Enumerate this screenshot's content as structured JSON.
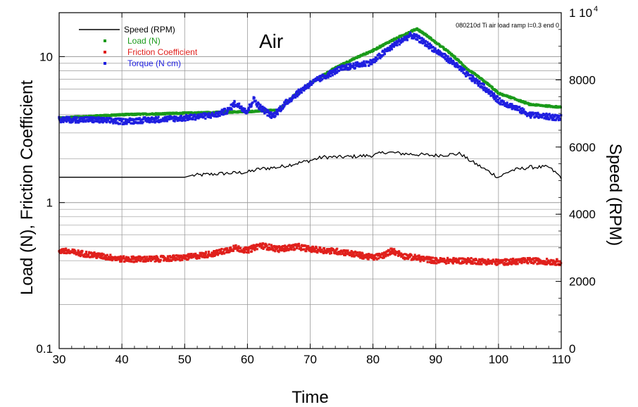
{
  "chart_data": {
    "type": "line",
    "title": "Air",
    "annotation": "080210d Ti air load ramp l=0.3 end 0",
    "xlabel": "Time",
    "ylabel_left": "Load (N), Friction Coefficient",
    "ylabel_right": "Speed (RPM)",
    "xlim": [
      30,
      110
    ],
    "ylim_left": [
      0.1,
      20
    ],
    "ylim_right": [
      0,
      10000
    ],
    "left_scale": "log",
    "grid": true,
    "legend_position": "top-left",
    "x_ticks": [
      "30",
      "40",
      "50",
      "60",
      "70",
      "80",
      "90",
      "100",
      "110"
    ],
    "y_left_ticks": [
      {
        "value": 0.1,
        "label": "0.1"
      },
      {
        "value": 1,
        "label": "1"
      },
      {
        "value": 10,
        "label": "10"
      }
    ],
    "y_right_ticks": [
      {
        "value": 0,
        "label": "0"
      },
      {
        "value": 2000,
        "label": "2000"
      },
      {
        "value": 4000,
        "label": "4000"
      },
      {
        "value": 6000,
        "label": "6000"
      },
      {
        "value": 8000,
        "label": "8000"
      }
    ],
    "y_right_top_label": {
      "mantissa": "1 10",
      "exponent": "4"
    },
    "series": [
      {
        "name": "Speed (RPM)",
        "axis": "right",
        "color": "#000000",
        "style": "line",
        "x": [
          30,
          35,
          40,
          45,
          50,
          51,
          55,
          60,
          62,
          65,
          70,
          72,
          75,
          80,
          82,
          85,
          90,
          94,
          95,
          100,
          102,
          105,
          108,
          110
        ],
        "y": [
          5100,
          5100,
          5100,
          5100,
          5100,
          5150,
          5200,
          5250,
          5350,
          5400,
          5600,
          5700,
          5700,
          5750,
          5850,
          5800,
          5750,
          5800,
          5650,
          5100,
          5300,
          5400,
          5400,
          5100
        ]
      },
      {
        "name": "Load (N)",
        "axis": "left",
        "color": "#1a9a1a",
        "style": "points",
        "x": [
          30,
          40,
          50,
          60,
          65,
          70,
          75,
          80,
          84,
          87,
          90,
          95,
          100,
          105,
          110
        ],
        "y": [
          3.8,
          4.0,
          4.1,
          4.2,
          4.3,
          6.5,
          8.8,
          11.0,
          13.5,
          15.5,
          12.5,
          8.2,
          5.6,
          4.7,
          4.5
        ]
      },
      {
        "name": "Friction Coefficient",
        "axis": "left",
        "color": "#e0201c",
        "style": "points",
        "x": [
          30,
          35,
          40,
          45,
          50,
          55,
          58,
          60,
          62,
          65,
          68,
          70,
          75,
          80,
          82,
          83,
          85,
          90,
          95,
          100,
          105,
          110
        ],
        "y": [
          0.47,
          0.44,
          0.41,
          0.41,
          0.42,
          0.45,
          0.49,
          0.47,
          0.51,
          0.48,
          0.5,
          0.48,
          0.46,
          0.42,
          0.44,
          0.47,
          0.43,
          0.4,
          0.4,
          0.39,
          0.4,
          0.39
        ]
      },
      {
        "name": "Torque (N cm)",
        "axis": "left",
        "color": "#1f1fe0",
        "style": "points",
        "x": [
          30,
          35,
          40,
          45,
          50,
          55,
          57,
          58,
          60,
          61,
          62,
          64,
          65,
          70,
          75,
          80,
          84,
          86,
          87,
          90,
          95,
          100,
          105,
          110
        ],
        "y": [
          3.7,
          3.7,
          3.6,
          3.7,
          3.8,
          4.0,
          4.3,
          4.8,
          4.2,
          5.1,
          4.5,
          3.9,
          4.3,
          6.5,
          8.3,
          9.2,
          12.5,
          14.0,
          13.5,
          11.0,
          7.5,
          5.0,
          4.0,
          3.8
        ]
      }
    ]
  }
}
